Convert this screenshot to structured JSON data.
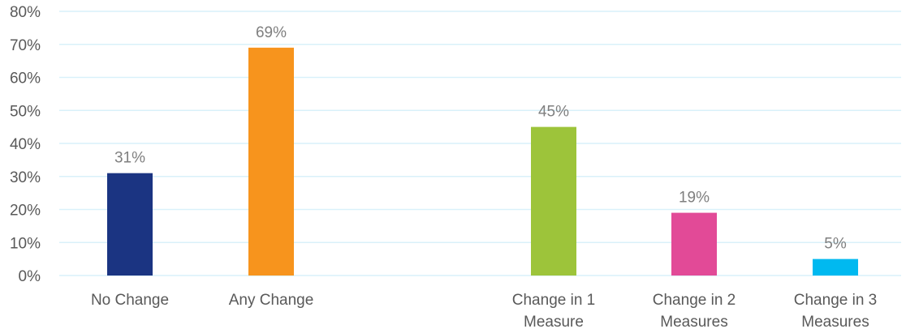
{
  "chart_data": {
    "type": "bar",
    "categories": [
      {
        "key": "no-change",
        "lines": [
          "No Change"
        ]
      },
      {
        "key": "any-change",
        "lines": [
          "Any Change"
        ]
      },
      {
        "key": "change-1",
        "lines": [
          "Change in 1",
          "Measure"
        ]
      },
      {
        "key": "change-2",
        "lines": [
          "Change in 2",
          "Measures"
        ]
      },
      {
        "key": "change-3",
        "lines": [
          "Change in 3",
          "Measures"
        ]
      }
    ],
    "values": [
      31,
      69,
      45,
      19,
      5
    ],
    "data_labels": [
      "31%",
      "69%",
      "45%",
      "19%",
      "5%"
    ],
    "colors": [
      "#1b3482",
      "#f7941d",
      "#9dc43a",
      "#e24a97",
      "#00b9f0"
    ],
    "ylim": [
      0,
      80
    ],
    "yticks": [
      0,
      10,
      20,
      30,
      40,
      50,
      60,
      70,
      80
    ],
    "ytick_labels": [
      "0%",
      "10%",
      "20%",
      "30%",
      "40%",
      "50%",
      "60%",
      "70%",
      "80%"
    ],
    "grid": true,
    "gridline_color": "#d9f1fa",
    "title": "",
    "xlabel": "",
    "ylabel": ""
  }
}
